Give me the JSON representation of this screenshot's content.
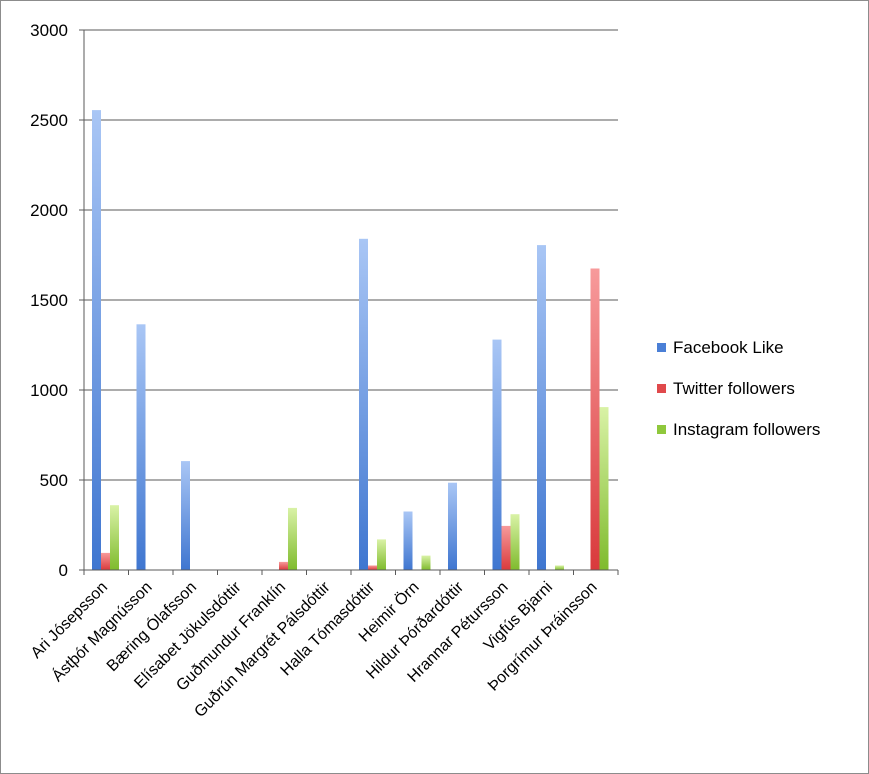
{
  "chart_data": {
    "type": "bar",
    "categories": [
      "Ari Jósepsson",
      "Ástþór Magnússon",
      "Bæring Ólafsson",
      "Elísabet Jökulsdóttir",
      "Guðmundur Franklín",
      "Guðrún Margrét Pálsdóttir",
      "Halla Tómasdóttir",
      "Heimir Örn",
      "Hildur Þórðardóttir",
      "Hrannar Pétursson",
      "Vigfús Bjarni",
      "Þorgrímur Þráinsson"
    ],
    "series": [
      {
        "name": "Facebook Like",
        "color": "#4a7fd6",
        "values": [
          2555,
          1365,
          605,
          0,
          0,
          0,
          1840,
          325,
          485,
          1280,
          1805,
          0
        ]
      },
      {
        "name": "Twitter followers",
        "color": "#e0494b",
        "values": [
          95,
          0,
          0,
          0,
          45,
          0,
          25,
          0,
          0,
          245,
          0,
          1675
        ]
      },
      {
        "name": "Instagram followers",
        "color": "#8fc83c",
        "values": [
          360,
          0,
          0,
          0,
          345,
          0,
          170,
          80,
          0,
          310,
          25,
          905
        ]
      }
    ],
    "y_ticks": [
      "0",
      "500",
      "1000",
      "1500",
      "2000",
      "2500",
      "3000"
    ],
    "ylim": [
      0,
      3000
    ],
    "grid": true,
    "legend_position": "right"
  }
}
